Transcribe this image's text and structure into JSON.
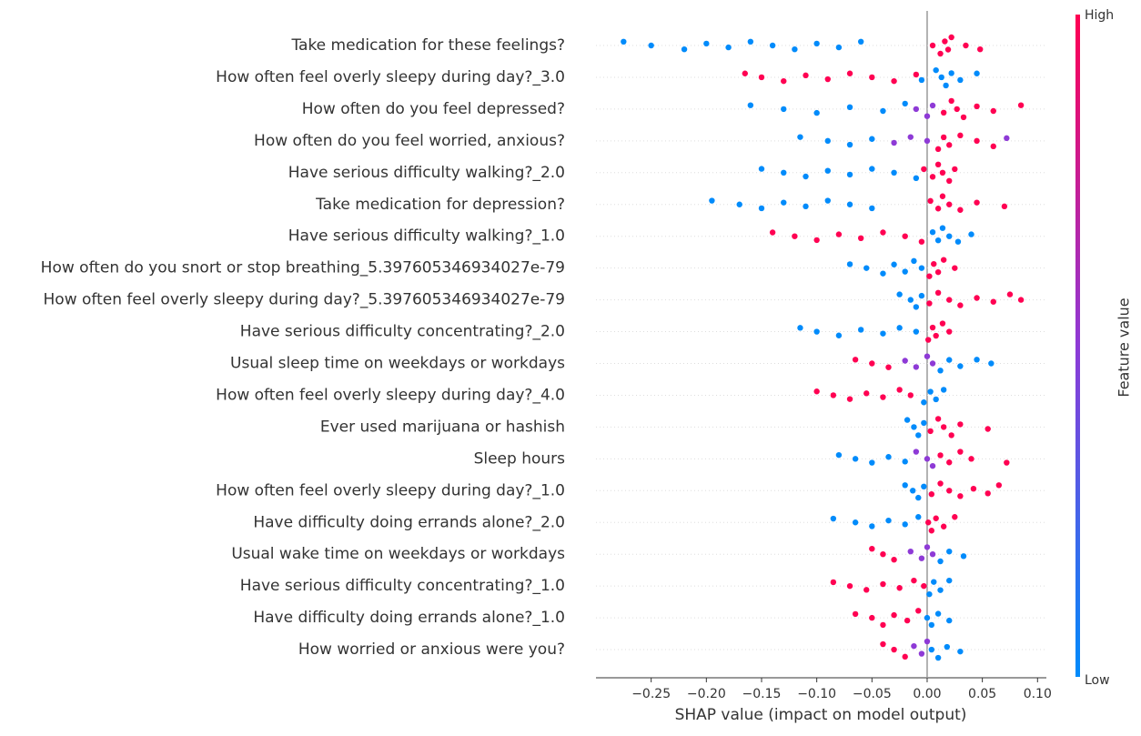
{
  "chart_data": {
    "type": "beeswarm",
    "xlabel": "SHAP value (impact on model output)",
    "xlim": [
      -0.3,
      0.108
    ],
    "xticks": [
      {
        "value": -0.25,
        "label": "−0.25"
      },
      {
        "value": -0.2,
        "label": "−0.20"
      },
      {
        "value": -0.15,
        "label": "−0.15"
      },
      {
        "value": -0.1,
        "label": "−0.10"
      },
      {
        "value": -0.05,
        "label": "−0.05"
      },
      {
        "value": 0,
        "label": "0.00"
      },
      0.05,
      {
        "value": 0.1,
        "label": "0.10"
      }
    ],
    "colorbar": {
      "label": "Feature value",
      "high": "High",
      "low": "Low",
      "colors": [
        "#008bfb",
        "#8e3ad6",
        "#ff0052"
      ]
    },
    "series": [
      {
        "name": "Take medication for these feelings?",
        "values": [
          -0.275,
          -0.25,
          -0.22,
          -0.2,
          -0.18,
          -0.16,
          -0.14,
          -0.12,
          -0.1,
          -0.08,
          -0.06,
          0.005,
          0.012,
          0.016,
          0.019,
          0.022,
          0.035,
          0.048
        ],
        "feature_values": [
          0,
          0,
          0,
          0,
          0,
          0,
          0,
          0,
          0,
          0,
          0,
          1,
          1,
          1,
          1,
          1,
          1,
          1
        ]
      },
      {
        "name": "How often feel overly sleepy during day?_3.0",
        "values": [
          -0.165,
          -0.15,
          -0.13,
          -0.11,
          -0.09,
          -0.07,
          -0.05,
          -0.03,
          -0.01,
          -0.005,
          0.008,
          0.013,
          0.017,
          0.022,
          0.03,
          0.045
        ],
        "feature_values": [
          1,
          1,
          1,
          1,
          1,
          1,
          1,
          1,
          1,
          0,
          0,
          0,
          0,
          0,
          0,
          0
        ]
      },
      {
        "name": "How often do you feel depressed?",
        "values": [
          -0.16,
          -0.13,
          -0.1,
          -0.07,
          -0.04,
          -0.02,
          -0.01,
          0,
          0.005,
          0.015,
          0.022,
          0.027,
          0.033,
          0.045,
          0.06,
          0.085
        ],
        "feature_values": [
          0,
          0,
          0,
          0,
          0,
          0,
          0.5,
          0.5,
          0.5,
          1,
          1,
          1,
          1,
          1,
          1,
          1
        ]
      },
      {
        "name": "How often do you feel worried, anxious?",
        "values": [
          -0.115,
          -0.09,
          -0.07,
          -0.05,
          -0.03,
          -0.015,
          0,
          0.01,
          0.015,
          0.02,
          0.03,
          0.045,
          0.06,
          0.072
        ],
        "feature_values": [
          0,
          0,
          0,
          0,
          0.5,
          0.5,
          0.5,
          1,
          1,
          1,
          1,
          1,
          1,
          0.5
        ]
      },
      {
        "name": "Have serious difficulty walking?_2.0",
        "values": [
          -0.15,
          -0.13,
          -0.11,
          -0.09,
          -0.07,
          -0.05,
          -0.03,
          -0.01,
          -0.003,
          0.005,
          0.01,
          0.014,
          0.02,
          0.025
        ],
        "feature_values": [
          0,
          0,
          0,
          0,
          0,
          0,
          0,
          0,
          1,
          1,
          1,
          1,
          1,
          1
        ]
      },
      {
        "name": "Take medication for depression?",
        "values": [
          -0.195,
          -0.17,
          -0.15,
          -0.13,
          -0.11,
          -0.09,
          -0.07,
          -0.05,
          0.003,
          0.01,
          0.014,
          0.02,
          0.03,
          0.045,
          0.07
        ],
        "feature_values": [
          0,
          0,
          0,
          0,
          0,
          0,
          0,
          0,
          1,
          1,
          1,
          1,
          1,
          1,
          1
        ]
      },
      {
        "name": "Have serious difficulty walking?_1.0",
        "values": [
          -0.14,
          -0.12,
          -0.1,
          -0.08,
          -0.06,
          -0.04,
          -0.02,
          -0.005,
          0.005,
          0.01,
          0.014,
          0.02,
          0.028,
          0.04
        ],
        "feature_values": [
          1,
          1,
          1,
          1,
          1,
          1,
          1,
          1,
          0,
          0,
          0,
          0,
          0,
          0
        ]
      },
      {
        "name": "How often do you snort or stop breathing_5.397605346934027e-79",
        "values": [
          -0.07,
          -0.055,
          -0.04,
          -0.03,
          -0.02,
          -0.012,
          -0.005,
          0.002,
          0.006,
          0.01,
          0.015,
          0.025
        ],
        "feature_values": [
          0,
          0,
          0,
          0,
          0,
          0,
          0,
          1,
          1,
          1,
          1,
          1
        ]
      },
      {
        "name": "How often feel overly sleepy during day?_5.397605346934027e-79",
        "values": [
          -0.025,
          -0.015,
          -0.01,
          -0.005,
          0.002,
          0.01,
          0.02,
          0.03,
          0.045,
          0.06,
          0.075,
          0.085
        ],
        "feature_values": [
          0,
          0,
          0,
          0,
          1,
          1,
          1,
          1,
          1,
          1,
          1,
          1
        ]
      },
      {
        "name": "Have serious difficulty concentrating?_2.0",
        "values": [
          -0.115,
          -0.1,
          -0.08,
          -0.06,
          -0.04,
          -0.025,
          -0.01,
          0.001,
          0.005,
          0.008,
          0.014,
          0.02
        ],
        "feature_values": [
          0,
          0,
          0,
          0,
          0,
          0,
          0,
          1,
          1,
          1,
          1,
          1
        ]
      },
      {
        "name": "Usual sleep time on weekdays or workdays",
        "values": [
          -0.065,
          -0.05,
          -0.035,
          -0.02,
          -0.01,
          0,
          0.005,
          0.012,
          0.02,
          0.03,
          0.045,
          0.058
        ],
        "feature_values": [
          1,
          1,
          1,
          0.5,
          0.5,
          0.5,
          0.5,
          0,
          0,
          0,
          0,
          0
        ]
      },
      {
        "name": "How often feel overly sleepy during day?_4.0",
        "values": [
          -0.1,
          -0.085,
          -0.07,
          -0.055,
          -0.04,
          -0.025,
          -0.015,
          -0.003,
          0.003,
          0.008,
          0.015
        ],
        "feature_values": [
          1,
          1,
          1,
          1,
          1,
          1,
          1,
          0,
          0,
          0,
          0
        ]
      },
      {
        "name": "Ever used marijuana or hashish",
        "values": [
          -0.018,
          -0.012,
          -0.008,
          -0.003,
          0.003,
          0.01,
          0.015,
          0.022,
          0.03,
          0.055
        ],
        "feature_values": [
          0,
          0,
          0,
          0,
          1,
          1,
          1,
          1,
          1,
          1
        ]
      },
      {
        "name": "Sleep hours",
        "values": [
          -0.08,
          -0.065,
          -0.05,
          -0.035,
          -0.02,
          -0.01,
          0,
          0.005,
          0.012,
          0.02,
          0.03,
          0.04,
          0.072
        ],
        "feature_values": [
          0,
          0,
          0,
          0,
          0,
          0.5,
          0.5,
          0.5,
          1,
          1,
          1,
          1,
          1
        ]
      },
      {
        "name": "How often feel overly sleepy during day?_1.0",
        "values": [
          -0.02,
          -0.013,
          -0.008,
          -0.003,
          0.004,
          0.012,
          0.02,
          0.03,
          0.042,
          0.055,
          0.065
        ],
        "feature_values": [
          0,
          0,
          0,
          0,
          1,
          1,
          1,
          1,
          1,
          1,
          1
        ]
      },
      {
        "name": "Have difficulty doing errands alone?_2.0",
        "values": [
          -0.085,
          -0.065,
          -0.05,
          -0.035,
          -0.02,
          -0.008,
          0.001,
          0.004,
          0.008,
          0.015,
          0.025
        ],
        "feature_values": [
          0,
          0,
          0,
          0,
          0,
          0,
          1,
          1,
          1,
          1,
          1
        ]
      },
      {
        "name": "Usual wake time on weekdays or workdays",
        "values": [
          -0.05,
          -0.04,
          -0.03,
          -0.015,
          -0.005,
          0,
          0.005,
          0.012,
          0.02,
          0.033
        ],
        "feature_values": [
          1,
          1,
          1,
          0.5,
          0.5,
          0.5,
          0.5,
          0,
          0,
          0
        ]
      },
      {
        "name": "Have serious difficulty concentrating?_1.0",
        "values": [
          -0.085,
          -0.07,
          -0.055,
          -0.04,
          -0.025,
          -0.012,
          -0.003,
          0.002,
          0.006,
          0.012,
          0.02
        ],
        "feature_values": [
          1,
          1,
          1,
          1,
          1,
          1,
          1,
          0,
          0,
          0,
          0
        ]
      },
      {
        "name": "Have difficulty doing errands alone?_1.0",
        "values": [
          -0.065,
          -0.05,
          -0.04,
          -0.03,
          -0.018,
          -0.008,
          0,
          0.004,
          0.01,
          0.02
        ],
        "feature_values": [
          1,
          1,
          1,
          1,
          1,
          1,
          0,
          0,
          0,
          0
        ]
      },
      {
        "name": "How worried or anxious were you?",
        "values": [
          -0.04,
          -0.03,
          -0.02,
          -0.012,
          -0.005,
          0,
          0.004,
          0.01,
          0.018,
          0.03
        ],
        "feature_values": [
          1,
          1,
          1,
          0.5,
          0.5,
          0.5,
          0,
          0,
          0,
          0
        ]
      }
    ]
  }
}
